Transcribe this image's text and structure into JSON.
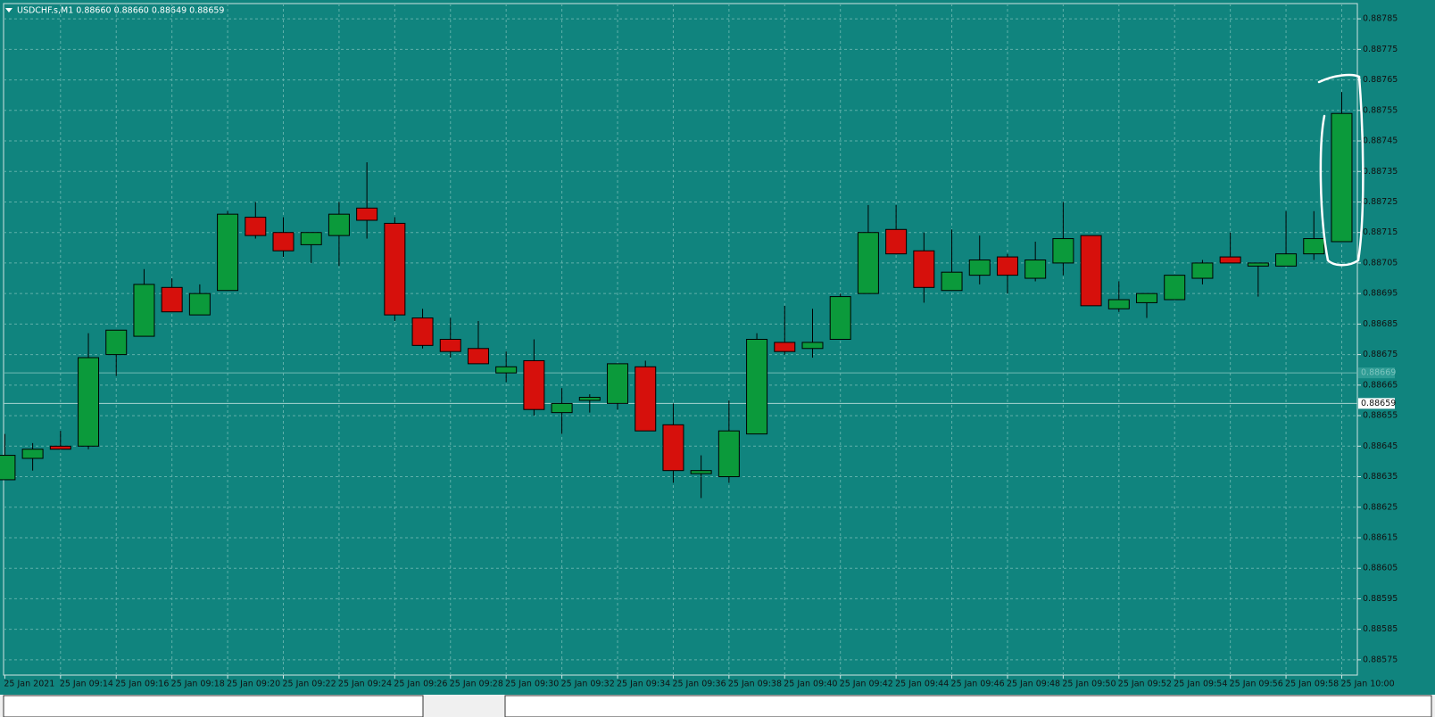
{
  "chart_data": {
    "type": "candlestick",
    "title": "USDCHF.s,M1  0.88660 0.88660 0.88649 0.88659",
    "categories": [
      "25 Jan 2021",
      null,
      "25 Jan 09:14",
      null,
      "25 Jan 09:16",
      null,
      "25 Jan 09:18",
      null,
      "25 Jan 09:20",
      null,
      "25 Jan 09:22",
      null,
      "25 Jan 09:24",
      null,
      "25 Jan 09:26",
      null,
      "25 Jan 09:28",
      null,
      "25 Jan 09:30",
      null,
      "25 Jan 09:32",
      null,
      "25 Jan 09:34",
      null,
      "25 Jan 09:36",
      null,
      "25 Jan 09:38",
      null,
      "25 Jan 09:40",
      null,
      "25 Jan 09:42",
      null,
      "25 Jan 09:44",
      null,
      "25 Jan 09:46",
      null,
      "25 Jan 09:48",
      null,
      "25 Jan 09:50",
      null,
      "25 Jan 09:52",
      null,
      "25 Jan 09:54",
      null,
      "25 Jan 09:56",
      null,
      "25 Jan 09:58",
      null,
      "25 Jan 10:00"
    ],
    "open": [
      0.88634,
      0.88641,
      0.88645,
      0.88645,
      0.88675,
      0.88681,
      0.88697,
      0.88688,
      0.88696,
      0.8872,
      0.88715,
      0.88711,
      0.88714,
      0.88723,
      0.88718,
      0.88687,
      0.8868,
      0.88677,
      0.88669,
      0.88673,
      0.88656,
      0.8866,
      0.88659,
      0.88671,
      0.88652,
      0.88636,
      0.88635,
      0.88649,
      0.88679,
      0.88677,
      0.8868,
      0.88695,
      0.88716,
      0.88709,
      0.88696,
      0.88701,
      0.88707,
      0.887,
      0.88705,
      0.88714,
      0.8869,
      0.88692,
      0.88693,
      0.887,
      0.88707,
      0.88704,
      0.88704,
      0.88708,
      0.88712
    ],
    "high": [
      0.88649,
      0.88646,
      0.8865,
      0.88682,
      0.88683,
      0.88703,
      0.887,
      0.88698,
      0.88722,
      0.88725,
      0.8872,
      0.88715,
      0.88725,
      0.88738,
      0.8872,
      0.8869,
      0.88687,
      0.88686,
      0.88676,
      0.8868,
      0.88664,
      0.88662,
      0.88672,
      0.88673,
      0.88659,
      0.88642,
      0.8866,
      0.88682,
      0.88691,
      0.8869,
      0.88695,
      0.88724,
      0.88724,
      0.88715,
      0.88716,
      0.88714,
      0.88708,
      0.88712,
      0.88725,
      0.88714,
      0.88699,
      0.88695,
      0.88701,
      0.88706,
      0.88715,
      0.88705,
      0.88722,
      0.88722,
      0.88761
    ],
    "low": [
      0.88634,
      0.88637,
      0.88644,
      0.88644,
      0.88668,
      0.88681,
      0.88689,
      0.88688,
      0.88696,
      0.88713,
      0.88707,
      0.88705,
      0.88704,
      0.88713,
      0.88686,
      0.88677,
      0.88674,
      0.88672,
      0.88666,
      0.88655,
      0.88649,
      0.88656,
      0.88657,
      0.8865,
      0.88633,
      0.88628,
      0.88633,
      0.88649,
      0.88675,
      0.88674,
      0.8868,
      0.88695,
      0.88708,
      0.88692,
      0.88696,
      0.88698,
      0.88695,
      0.88699,
      0.88701,
      0.88691,
      0.88689,
      0.88687,
      0.88693,
      0.88698,
      0.88705,
      0.88694,
      0.88704,
      0.88706,
      0.88712
    ],
    "close": [
      0.88642,
      0.88644,
      0.88644,
      0.88674,
      0.88683,
      0.88698,
      0.88689,
      0.88695,
      0.88721,
      0.88714,
      0.88709,
      0.88715,
      0.88721,
      0.88719,
      0.88688,
      0.88678,
      0.88676,
      0.88672,
      0.88671,
      0.88657,
      0.88659,
      0.88661,
      0.88672,
      0.8865,
      0.88637,
      0.88637,
      0.8865,
      0.8868,
      0.88676,
      0.88679,
      0.88694,
      0.88715,
      0.88708,
      0.88697,
      0.88702,
      0.88706,
      0.88701,
      0.88706,
      0.88713,
      0.88691,
      0.88693,
      0.88695,
      0.88701,
      0.88705,
      0.88705,
      0.88705,
      0.88708,
      0.88713,
      0.88754
    ],
    "up_color": "#0b9a3b",
    "down_color": "#d6100c",
    "ylim": [
      0.8857,
      0.8879
    ],
    "yticks": [
      0.88785,
      0.88775,
      0.88765,
      0.88755,
      0.88745,
      0.88735,
      0.88725,
      0.88715,
      0.88705,
      0.88695,
      0.88685,
      0.88675,
      0.88665,
      0.88655,
      0.88645,
      0.88635,
      0.88625,
      0.88615,
      0.88605,
      0.88595,
      0.88585,
      0.88575
    ],
    "price_lines": [
      0.88669,
      0.88659
    ],
    "grid": true
  }
}
